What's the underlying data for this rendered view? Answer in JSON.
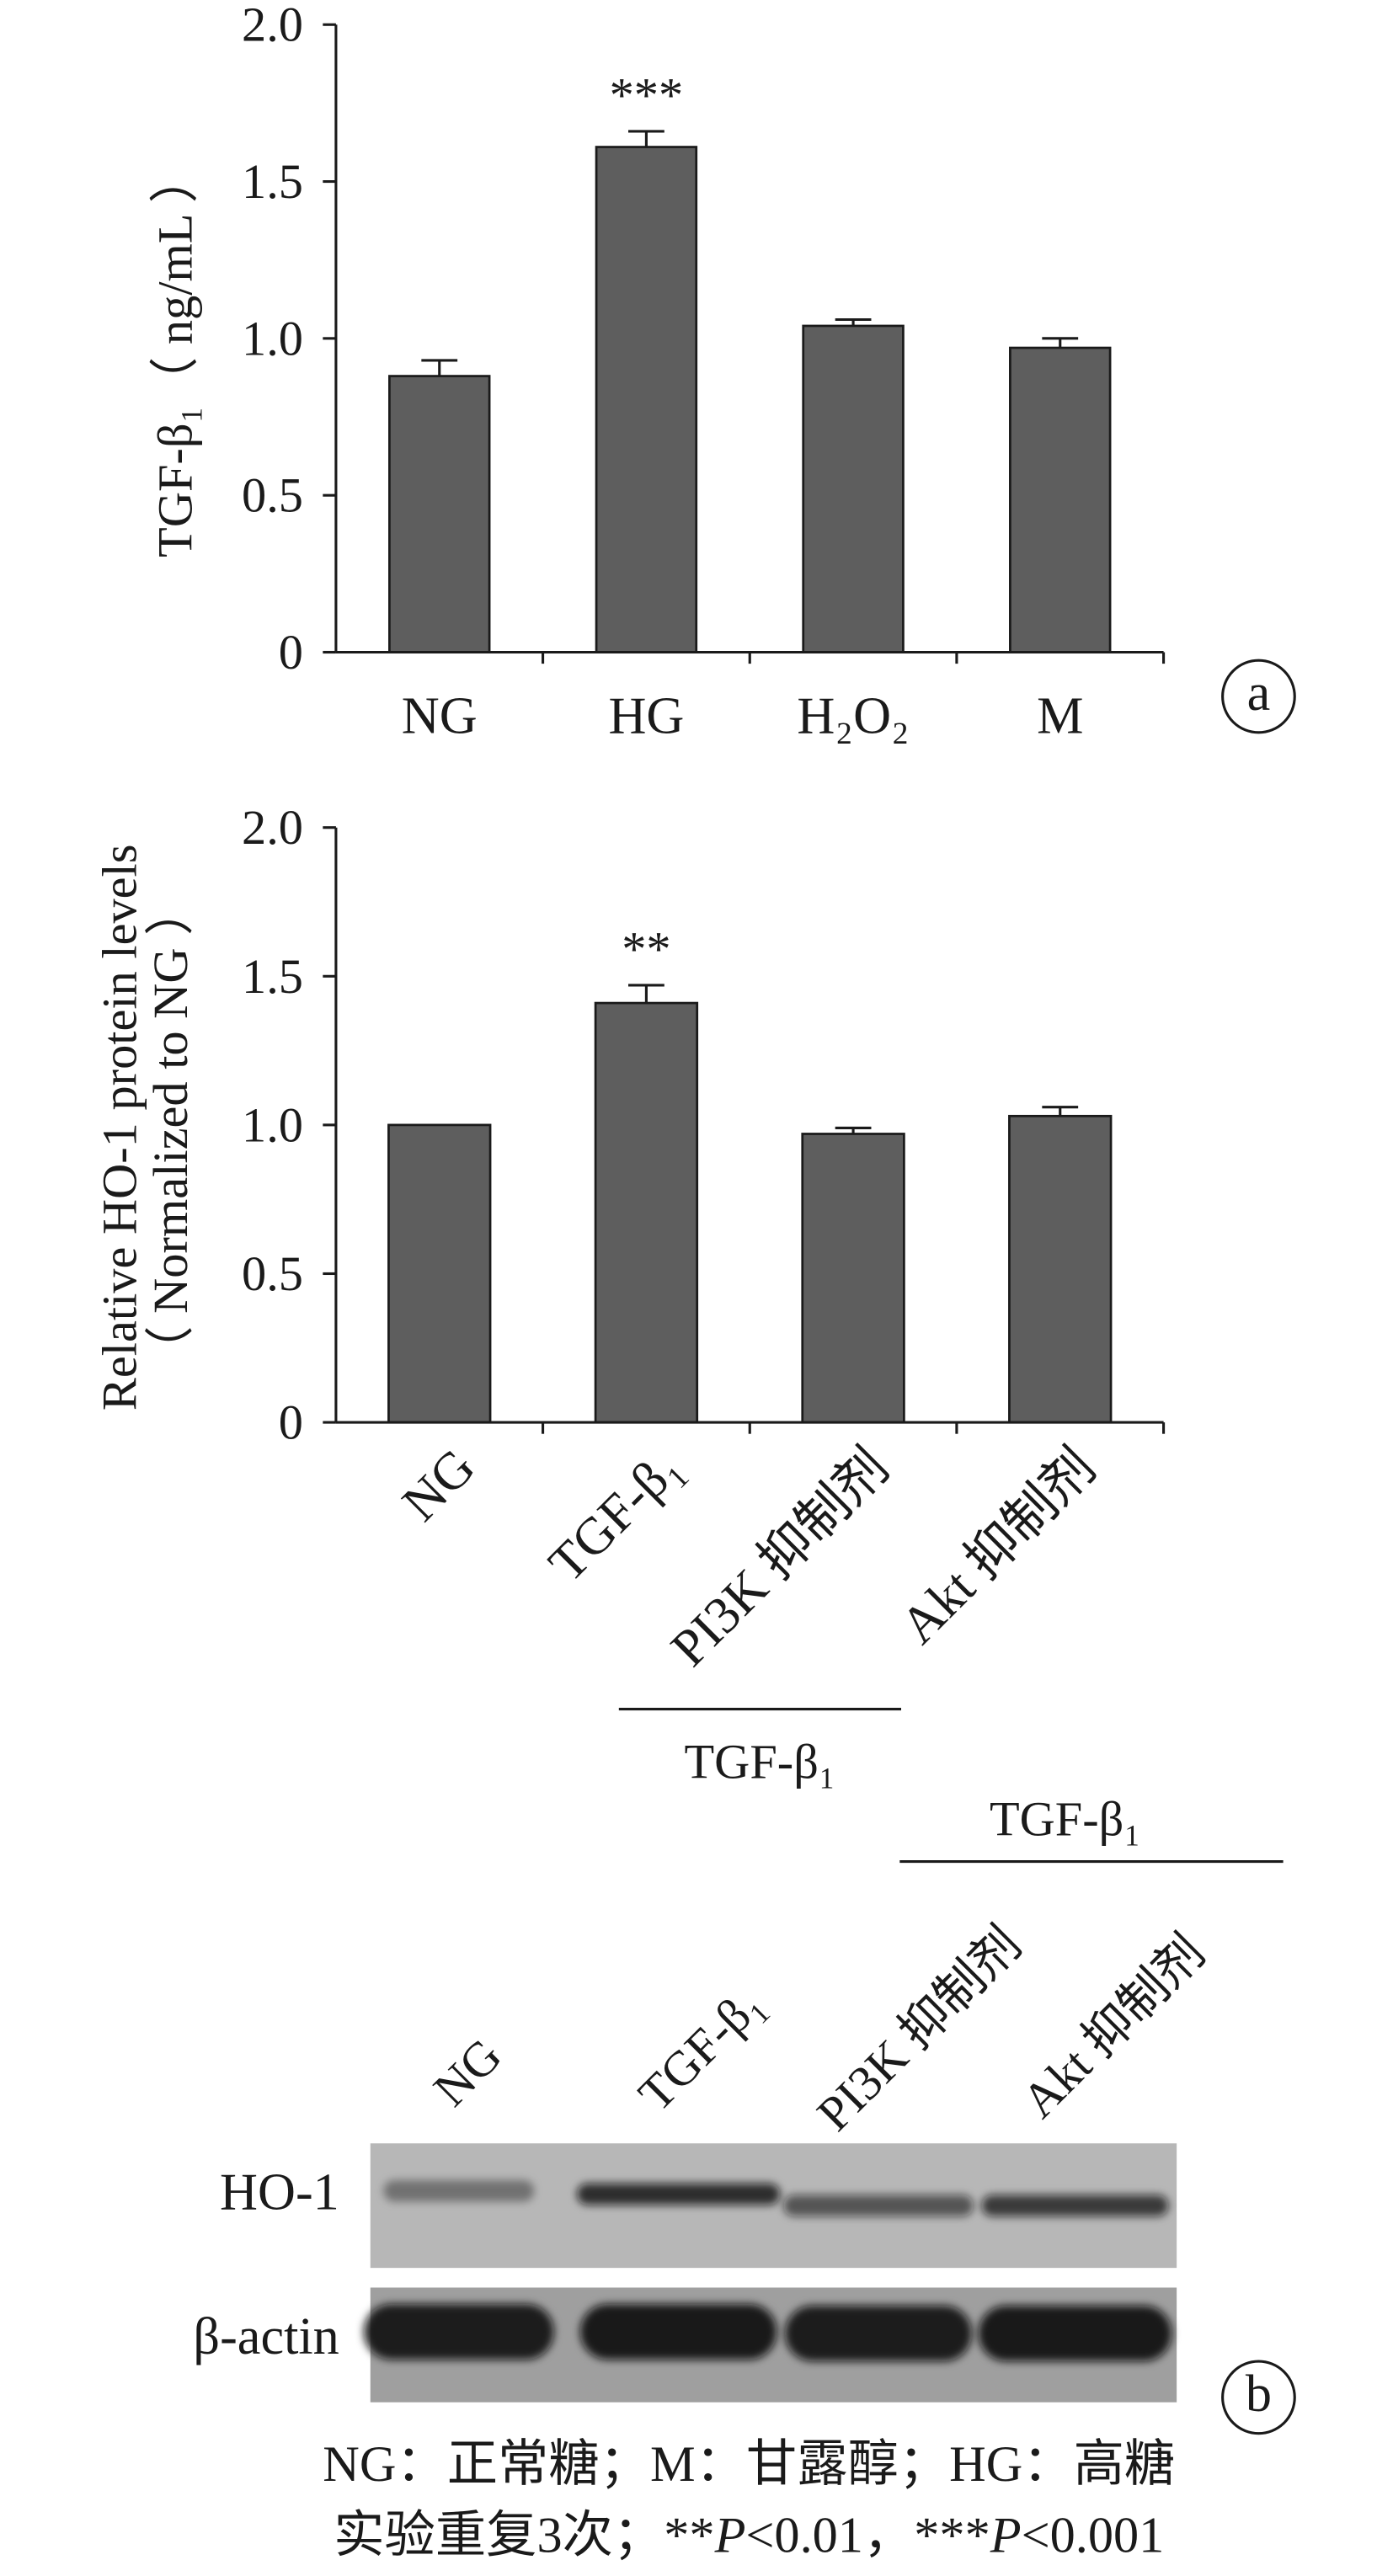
{
  "chart_data": [
    {
      "type": "bar",
      "panel_label": "a",
      "ylabel": "TGF-β₁（ ng/mL ）",
      "categories": [
        "NG",
        "HG",
        "H₂O₂",
        "M"
      ],
      "values": [
        0.88,
        1.61,
        1.04,
        0.97
      ],
      "errors": [
        0.05,
        0.05,
        0.02,
        0.03
      ],
      "significance": [
        "",
        "***",
        "",
        ""
      ],
      "ylim": [
        0,
        2.0
      ],
      "yticks": [
        0,
        0.5,
        1.0,
        1.5,
        2.0
      ],
      "ytick_labels": [
        "0",
        "0.5",
        "1.0",
        "1.5",
        "2.0"
      ],
      "grid": false,
      "bar_color": "#5e5e5e"
    },
    {
      "type": "bar",
      "ylabel": [
        "Relative HO-1 protein levels",
        "（ Normalized to NG ）"
      ],
      "categories": [
        "NG",
        "TGF-β₁",
        "PI3K 抑制剂",
        "Akt 抑制剂"
      ],
      "values": [
        1.0,
        1.41,
        0.97,
        1.03
      ],
      "errors": [
        0,
        0.06,
        0.02,
        0.03
      ],
      "significance": [
        "",
        "**",
        "",
        ""
      ],
      "group": {
        "label": "TGF-β₁",
        "spans": [
          2,
          3
        ]
      },
      "ylim": [
        0,
        2.0
      ],
      "yticks": [
        0,
        0.5,
        1.0,
        1.5,
        2.0
      ],
      "ytick_labels": [
        "0",
        "0.5",
        "1.0",
        "1.5",
        "2.0"
      ],
      "grid": false,
      "bar_color": "#5e5e5e"
    }
  ],
  "blot": {
    "panel_label": "b",
    "group": {
      "label": "TGF-β₁",
      "spans": [
        2,
        3
      ]
    },
    "lanes": [
      "NG",
      "TGF-β₁",
      "PI3K 抑制剂",
      "Akt 抑制剂"
    ],
    "rows": [
      {
        "label": "HO-1",
        "band_intensity": [
          0.38,
          0.82,
          0.6,
          0.75
        ],
        "membrane_color": "#b7b7b7"
      },
      {
        "label": "β-actin",
        "band_intensity": [
          0.9,
          0.92,
          0.9,
          0.92
        ],
        "membrane_color": "#9f9f9f"
      }
    ]
  },
  "footnotes": [
    "NG：正常糖；M：甘露醇；HG：高糖",
    "实验重复3次；**P<0.01，***P<0.001"
  ]
}
